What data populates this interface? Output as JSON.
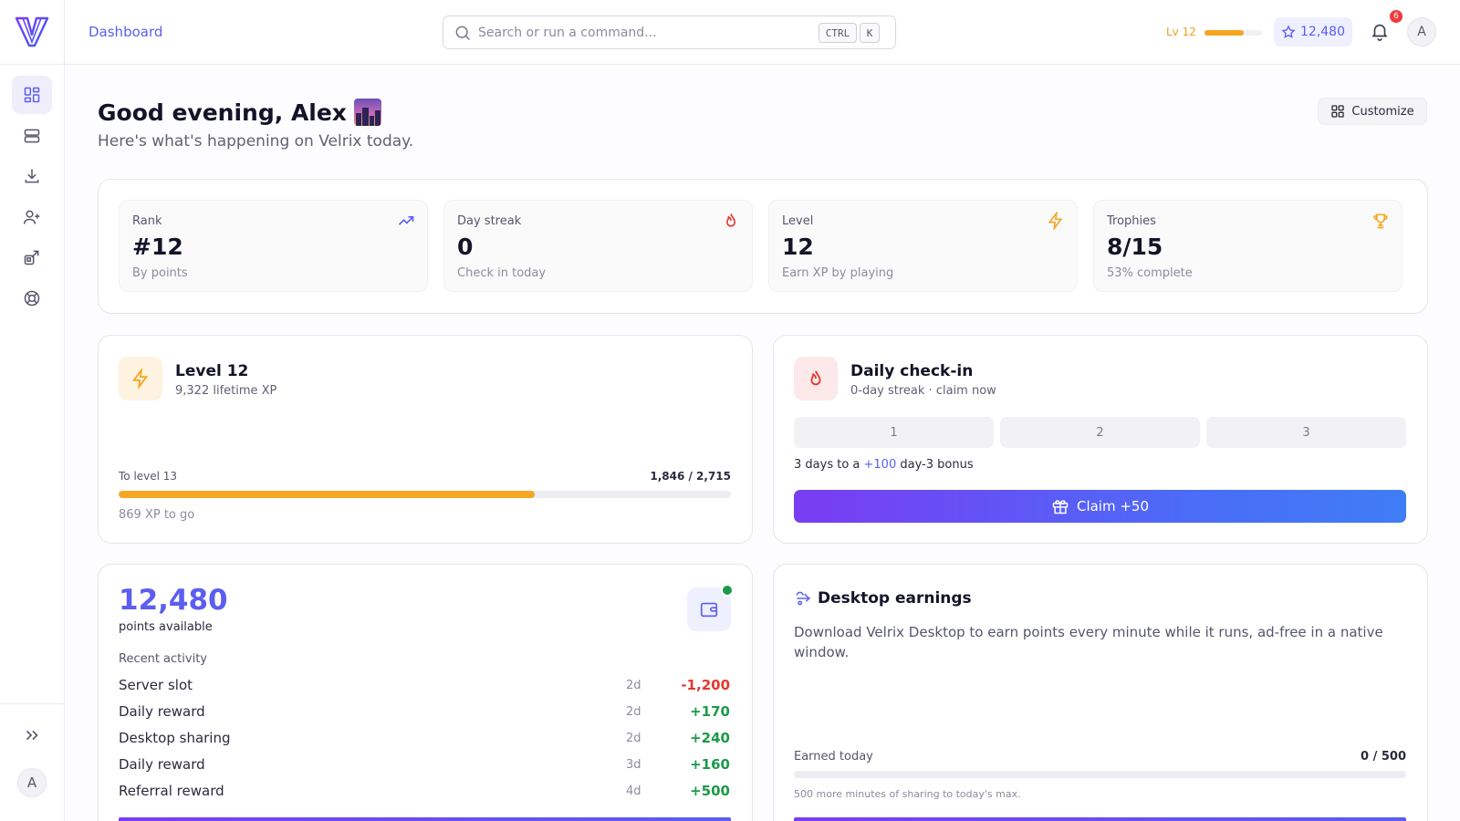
{
  "header": {
    "breadcrumb": "Dashboard",
    "search_placeholder": "Search or run a command...",
    "kbd_ctrl": "CTRL",
    "kbd_k": "K",
    "level_label": "Lv 12",
    "level_progress": 0.68,
    "points": "12,480",
    "notification_count": "6",
    "avatar_initial": "A"
  },
  "sidebar": {
    "items": [
      {
        "icon": "dashboard-icon",
        "active": true
      },
      {
        "icon": "servers-icon",
        "active": false
      },
      {
        "icon": "download-icon",
        "active": false
      },
      {
        "icon": "user-plus-icon",
        "active": false
      },
      {
        "icon": "share-icon",
        "active": false
      },
      {
        "icon": "support-icon",
        "active": false
      }
    ],
    "avatar_initial": "A"
  },
  "greeting": {
    "title": "Good evening, Alex",
    "subtitle": "Here's what's happening on Velrix today.",
    "customize_label": "Customize"
  },
  "stats": [
    {
      "label": "Rank",
      "value": "#12",
      "sub": "By points",
      "icon": "trending-up-icon",
      "color": "#5b5ef0"
    },
    {
      "label": "Day streak",
      "value": "0",
      "sub": "Check in today",
      "icon": "flame-icon",
      "color": "#e5372e"
    },
    {
      "label": "Level",
      "value": "12",
      "sub": "Earn XP by playing",
      "icon": "bolt-icon",
      "color": "#f5a623"
    },
    {
      "label": "Trophies",
      "value": "8/15",
      "sub": "53% complete",
      "icon": "trophy-icon",
      "color": "#f5a623"
    }
  ],
  "level_card": {
    "title": "Level 12",
    "subtitle": "9,322 lifetime XP",
    "progress_label": "To level 13",
    "progress_value": "1,846 / 2,715",
    "progress_fraction": 0.68,
    "remaining": "869 XP to go"
  },
  "checkin_card": {
    "title": "Daily check-in",
    "subtitle": "0-day streak · claim now",
    "days": [
      "1",
      "2",
      "3"
    ],
    "bonus_prefix": "3 days to a ",
    "bonus_amount": "+100",
    "bonus_suffix": " day-3 bonus",
    "claim_label": "Claim +50"
  },
  "points_card": {
    "balance": "12,480",
    "balance_label": "points available",
    "activity_title": "Recent activity",
    "activity": [
      {
        "label": "Server slot",
        "time": "2d",
        "amount": "-1,200",
        "type": "neg"
      },
      {
        "label": "Daily reward",
        "time": "2d",
        "amount": "+170",
        "type": "pos"
      },
      {
        "label": "Desktop sharing",
        "time": "2d",
        "amount": "+240",
        "type": "pos"
      },
      {
        "label": "Daily reward",
        "time": "3d",
        "amount": "+160",
        "type": "pos"
      },
      {
        "label": "Referral reward",
        "time": "4d",
        "amount": "+500",
        "type": "pos"
      }
    ]
  },
  "desktop_card": {
    "title": "Desktop earnings",
    "description": "Download Velrix Desktop to earn points every minute while it runs, ad-free in a native window.",
    "earned_label": "Earned today",
    "earned_value": "0 / 500",
    "earned_fraction": 0,
    "note": "500 more minutes of sharing to today's max."
  },
  "colors": {
    "accent": "#5b5ef0",
    "xp": "#f5a623",
    "negative": "#e5372e",
    "positive": "#1a9a48"
  }
}
